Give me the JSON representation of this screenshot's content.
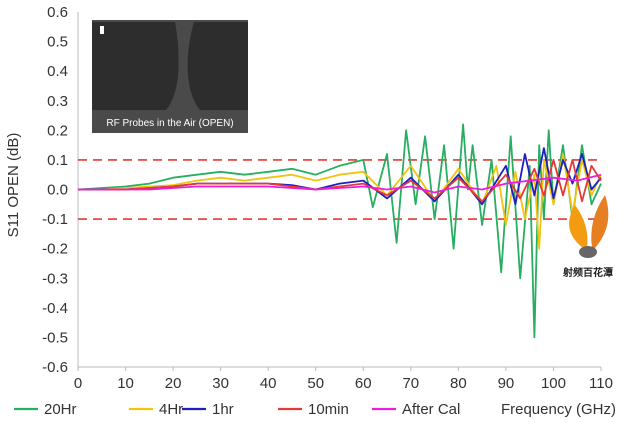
{
  "chart_data": {
    "type": "line",
    "title": "",
    "xlabel": "Frequency (GHz)",
    "ylabel": "S11 OPEN (dB)",
    "xlim": [
      0,
      110
    ],
    "ylim": [
      -0.6,
      0.6
    ],
    "x_ticks": [
      0,
      10,
      20,
      30,
      40,
      50,
      60,
      70,
      80,
      90,
      100,
      110
    ],
    "y_ticks": [
      0.6,
      0.5,
      0.4,
      0.3,
      0.2,
      0.1,
      0.0,
      -0.1,
      -0.2,
      -0.3,
      -0.4,
      -0.5,
      -0.6
    ],
    "x_tick_labels": [
      "0",
      "10",
      "20",
      "30",
      "40",
      "50",
      "60",
      "70",
      "80",
      "90",
      "100",
      "110"
    ],
    "y_tick_labels": [
      "0.6",
      "0.5",
      "0.4",
      "0.3",
      "0.2",
      "0.1",
      "0.0",
      "-0.1",
      "-0.2",
      "-0.3",
      "-0.4",
      "-0.5",
      "-0.6"
    ],
    "grid": false,
    "legend_position": "bottom",
    "reference_lines": [
      {
        "y": 0.1,
        "color": "#e53935",
        "style": "dashed"
      },
      {
        "y": -0.1,
        "color": "#e53935",
        "style": "dashed"
      }
    ],
    "inset_caption": "RF Probes in the Air (OPEN)",
    "logo_text": "射频百花潭",
    "series": [
      {
        "name": "20Hr",
        "color": "#27ae60",
        "x": [
          0,
          5,
          10,
          15,
          20,
          25,
          30,
          35,
          40,
          45,
          50,
          55,
          60,
          62,
          65,
          67,
          69,
          71,
          73,
          75,
          77,
          79,
          81,
          82,
          83,
          85,
          87,
          89,
          91,
          93,
          95,
          96,
          97,
          98,
          99,
          100,
          102,
          104,
          106,
          108,
          110
        ],
        "y": [
          0,
          0.005,
          0.01,
          0.02,
          0.04,
          0.05,
          0.06,
          0.05,
          0.06,
          0.07,
          0.05,
          0.08,
          0.1,
          -0.06,
          0.12,
          -0.18,
          0.2,
          -0.05,
          0.18,
          -0.1,
          0.15,
          -0.2,
          0.22,
          0.0,
          0.15,
          -0.12,
          0.1,
          -0.28,
          0.18,
          -0.3,
          0.08,
          -0.5,
          0.15,
          -0.1,
          0.2,
          -0.05,
          0.15,
          -0.1,
          0.15,
          -0.05,
          0.02
        ]
      },
      {
        "name": "4Hr",
        "color": "#f1c40f",
        "x": [
          0,
          5,
          10,
          15,
          20,
          25,
          30,
          35,
          40,
          45,
          50,
          55,
          60,
          65,
          70,
          75,
          80,
          85,
          88,
          90,
          92,
          94,
          96,
          97,
          98,
          100,
          102,
          104,
          106,
          108,
          110
        ],
        "y": [
          0,
          0.0,
          0.005,
          0.01,
          0.015,
          0.03,
          0.04,
          0.03,
          0.04,
          0.05,
          0.03,
          0.05,
          0.06,
          -0.02,
          0.08,
          -0.04,
          0.07,
          -0.05,
          0.08,
          -0.12,
          0.06,
          -0.1,
          0.05,
          -0.2,
          0.1,
          -0.05,
          0.12,
          -0.08,
          0.1,
          -0.02,
          0.05
        ]
      },
      {
        "name": "1hr",
        "color": "#1f1fbf",
        "x": [
          0,
          5,
          10,
          15,
          20,
          25,
          30,
          35,
          40,
          45,
          50,
          55,
          60,
          65,
          70,
          75,
          80,
          85,
          90,
          92,
          94,
          96,
          98,
          100,
          102,
          104,
          106,
          108,
          110
        ],
        "y": [
          0,
          0.0,
          0.0,
          0.005,
          0.01,
          0.02,
          0.02,
          0.02,
          0.02,
          0.015,
          0.0,
          0.02,
          0.03,
          -0.03,
          0.04,
          -0.04,
          0.05,
          -0.05,
          0.08,
          -0.05,
          0.12,
          -0.02,
          0.14,
          -0.03,
          0.1,
          0.02,
          0.12,
          0.0,
          0.04
        ]
      },
      {
        "name": "10min",
        "color": "#e53935",
        "x": [
          0,
          5,
          10,
          15,
          20,
          25,
          30,
          35,
          40,
          45,
          50,
          55,
          60,
          65,
          70,
          75,
          80,
          85,
          90,
          93,
          96,
          98,
          100,
          102,
          104,
          106,
          108,
          110
        ],
        "y": [
          0,
          0.0,
          0.0,
          0.005,
          0.01,
          0.02,
          0.02,
          0.02,
          0.02,
          0.01,
          0.0,
          0.01,
          0.02,
          -0.02,
          0.03,
          -0.03,
          0.04,
          -0.04,
          0.05,
          -0.03,
          0.07,
          -0.02,
          0.1,
          -0.02,
          0.1,
          -0.04,
          0.08,
          0.03
        ]
      },
      {
        "name": "After Cal",
        "color": "#e91ee0",
        "x": [
          0,
          5,
          10,
          15,
          20,
          25,
          30,
          35,
          40,
          45,
          50,
          55,
          60,
          65,
          70,
          75,
          80,
          85,
          90,
          95,
          100,
          105,
          110
        ],
        "y": [
          0,
          0.0,
          0.0,
          0.0,
          0.005,
          0.01,
          0.01,
          0.01,
          0.01,
          0.005,
          0.0,
          0.005,
          0.01,
          0.0,
          0.01,
          -0.01,
          0.01,
          0.0,
          0.02,
          0.03,
          0.04,
          0.03,
          0.05
        ]
      }
    ]
  }
}
